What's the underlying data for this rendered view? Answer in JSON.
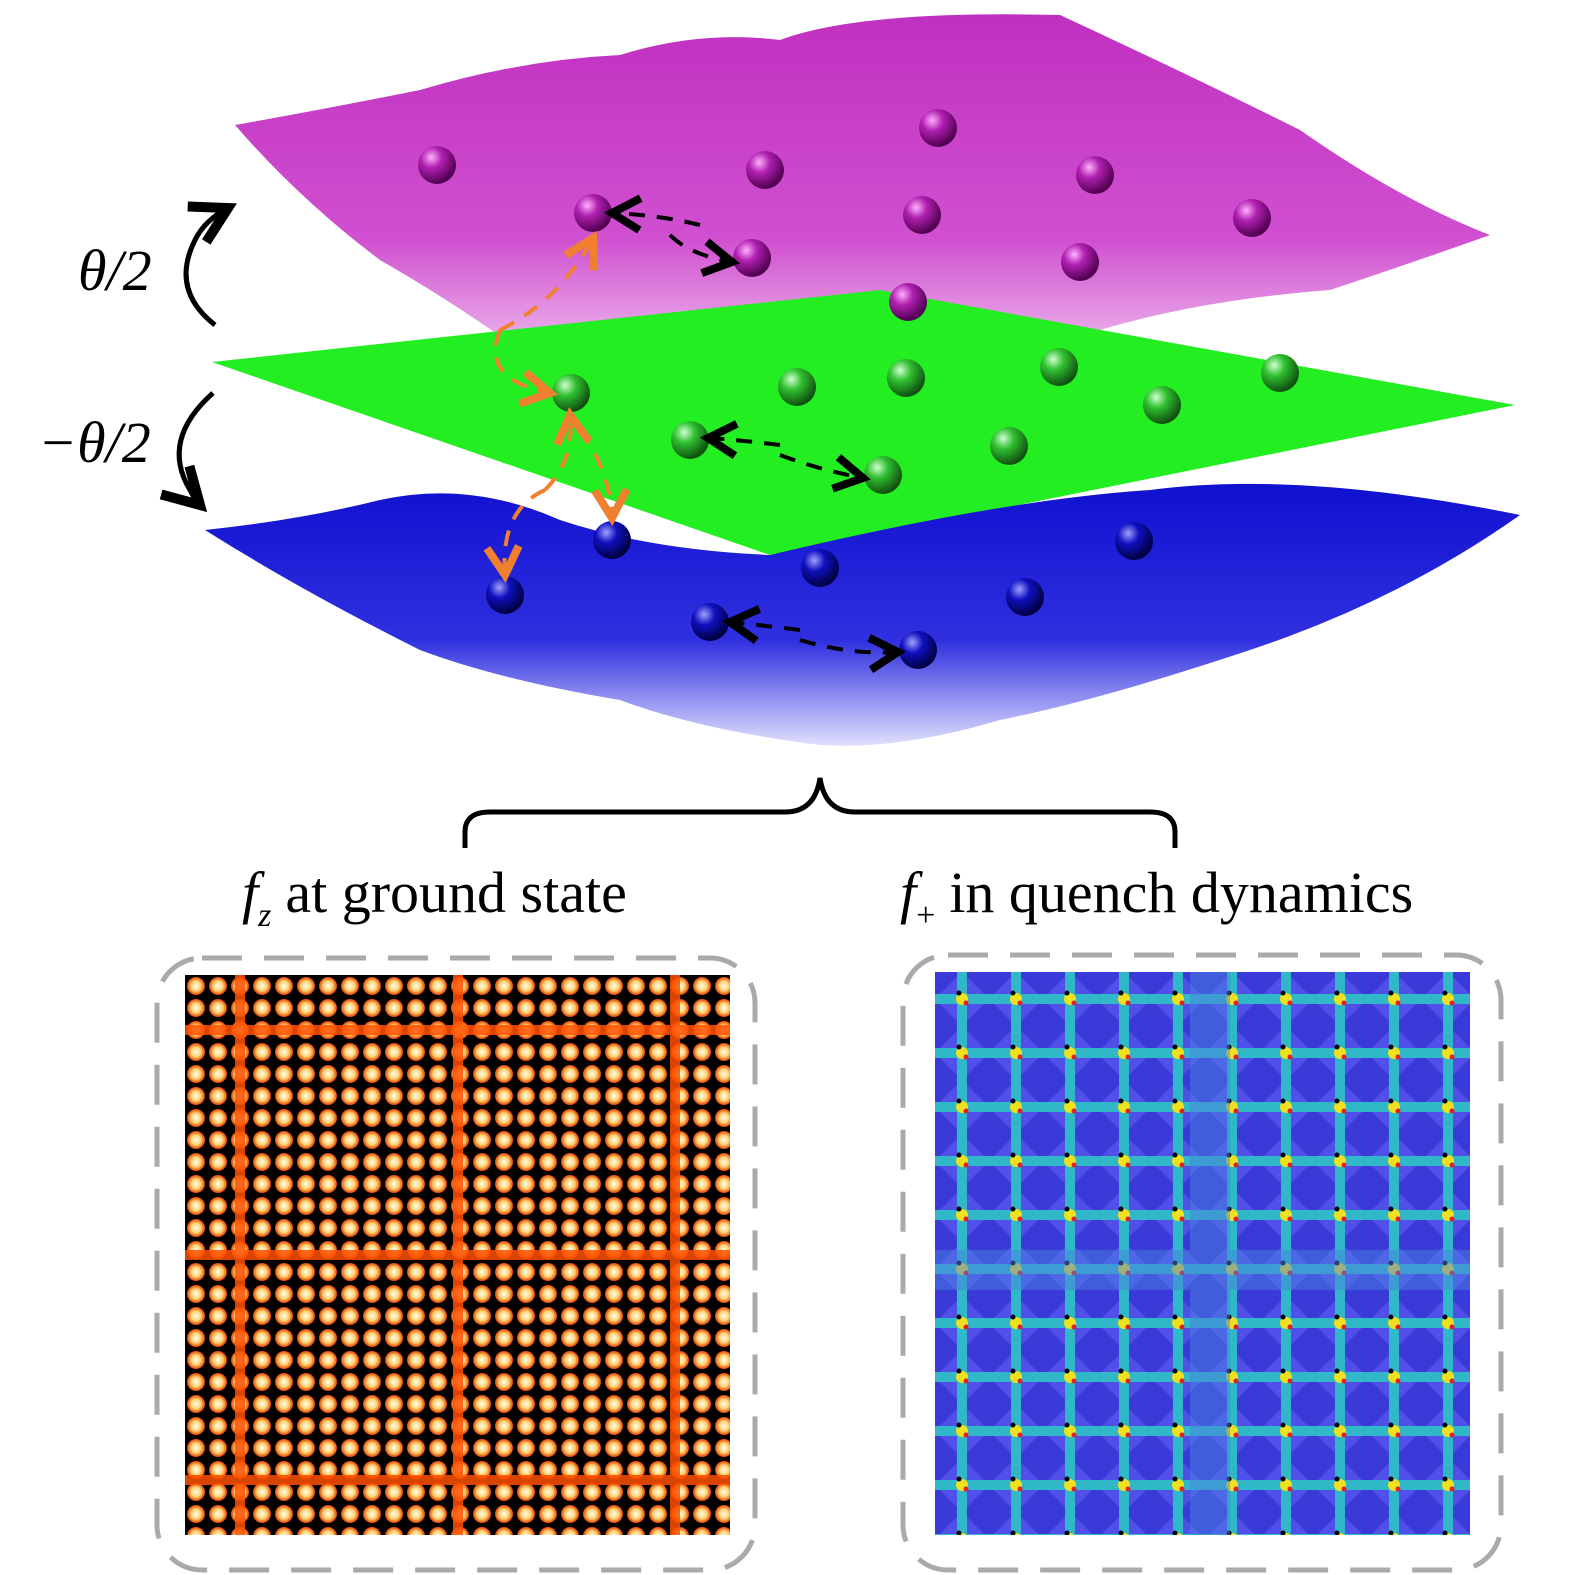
{
  "labels": {
    "upper_twist": "θ/2",
    "lower_twist": "−θ/2"
  },
  "panels": [
    {
      "symbol": "f",
      "subscript": "z",
      "caption": "at ground state"
    },
    {
      "symbol": "f",
      "subscript": "+",
      "caption": "in quench dynamics"
    }
  ]
}
